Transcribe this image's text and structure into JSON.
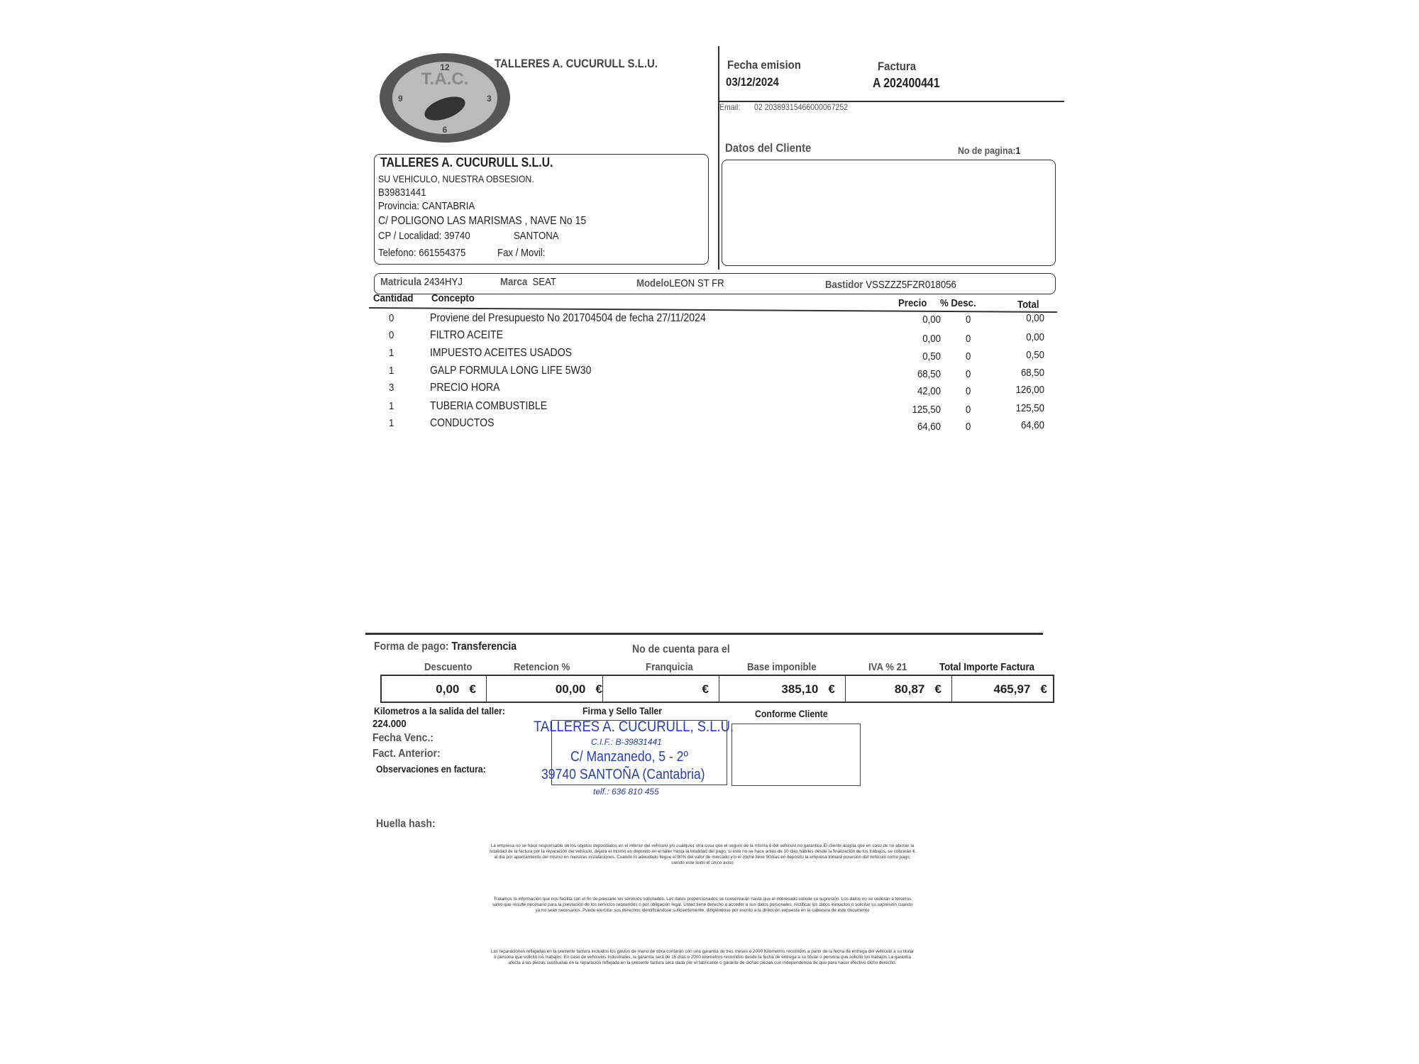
{
  "header": {
    "company": "TALLERES A. CUCURULL S.L.U.",
    "logo_text": "T.A.C.",
    "fecha_label": "Fecha emision",
    "fecha": "03/12/2024",
    "factura_label": "Factura",
    "factura": "A 202400441",
    "email_label": "Email:",
    "email": "02 20389315466000067252"
  },
  "company": {
    "name": "TALLERES A. CUCURULL S.L.U.",
    "slogan": "SU VEHICULO, NUESTRA OBSESION.",
    "cif": "B39831441",
    "provincia": "Provincia:  CANTABRIA",
    "direccion": "C/ POLIGONO LAS MARISMAS , NAVE No 15",
    "cp_label": "CP / Localidad:  39740",
    "localidad": "SANTONA",
    "telefono": "Telefono:  661554375",
    "fax": "Fax / Movil:"
  },
  "cliente": {
    "title": "Datos del Cliente",
    "page_label": "No de pagina:",
    "page": "1"
  },
  "vehiculo": {
    "matricula_label": "Matricula",
    "matricula": "2434HYJ",
    "marca_label": "Marca",
    "marca": "SEAT",
    "modelo_label": "Modelo",
    "modelo": "LEON ST FR",
    "bastidor_label": "Bastidor",
    "bastidor": "VSSZZZ5FZR018056"
  },
  "table": {
    "headers": {
      "cantidad": "Cantidad",
      "concepto": "Concepto",
      "precio": "Precio",
      "desc": "% Desc.",
      "total": "Total"
    },
    "rows": [
      {
        "cantidad": "0",
        "concepto": "Proviene del Presupuesto No  201704504 de fecha 27/11/2024",
        "precio": "0,00",
        "desc": "0",
        "total": "0,00"
      },
      {
        "cantidad": "0",
        "concepto": "FILTRO ACEITE",
        "precio": "0,00",
        "desc": "0",
        "total": "0,00"
      },
      {
        "cantidad": "1",
        "concepto": "IMPUESTO ACEITES USADOS",
        "precio": "0,50",
        "desc": "0",
        "total": "0,50"
      },
      {
        "cantidad": "1",
        "concepto": "GALP FORMULA LONG LIFE 5W30",
        "precio": "68,50",
        "desc": "0",
        "total": "68,50"
      },
      {
        "cantidad": "3",
        "concepto": "PRECIO HORA",
        "precio": "42,00",
        "desc": "0",
        "total": "126,00"
      },
      {
        "cantidad": "1",
        "concepto": "TUBERIA COMBUSTIBLE",
        "precio": "125,50",
        "desc": "0",
        "total": "125,50"
      },
      {
        "cantidad": "1",
        "concepto": "CONDUCTOS",
        "precio": "64,60",
        "desc": "0",
        "total": "64,60"
      }
    ]
  },
  "pago": {
    "forma_label": "Forma de pago:",
    "forma": "Transferencia",
    "cuenta_label": "No de cuenta para el"
  },
  "totales": {
    "descuento_label": "Descuento",
    "descuento": "0,00",
    "retencion_label": "Retencion %",
    "retencion": "00,00",
    "franquicia_label": "Franquicia",
    "base_label": "Base imponible",
    "base": "385,10",
    "iva_label": "IVA %  21",
    "iva": "80,87",
    "total_label": "Total Importe Factura",
    "total": "465,97",
    "currency": "€"
  },
  "footer": {
    "km_label": "Kilometros a la salida del taller:",
    "km": "224.000",
    "fecha_venc": "Fecha Venc.:",
    "fact_anterior": "Fact. Anterior:",
    "observaciones": "Observaciones en factura:",
    "firma_label": "Firma y Sello Taller",
    "conforme_label": "Conforme Cliente",
    "huella": "Huella hash:"
  },
  "stamp": {
    "name": "TALLERES A. CUCURULL, S.L.U.",
    "cif": "C.I.F.: B-39831441",
    "address": "C/ Manzanedo, 5 - 2º",
    "city": "39740 SANTOÑA (Cantabria)",
    "tel": "telf.: 636 810 455"
  },
  "legal": [
    "La empresa no se hace responsable de los objetos depositados en el interior del vehiculo y/o cualquier otra cosa que el seguro de la misma ó del vehiculo no garantice.El cliente acepta que en caso de no abonar la totalidad de la factura por la reparación del vehiculo, dejara el mismo en deposito en el taller hasta la totalidad del pago, si este no se hace  antes de 10 dias hábiles desde la finalización de los trabajos, se cobrarán              € al día por aparcamiento del mismo en nuestras instalaciones.  Cuando lo adeudado llegue el 80% del valor de mercado y/o el coche lleve 90días en depósito la empresa tomará posesión del vehiculo como pago, siendo este texto el único aviso",
    "Tratamos la información que nos facilita con el fin de prestarle los servicios solicitados. Los datos proporcionados se conservarán hasta que el interesado solicite  su supresión. Los datos no se cederán a terceros salvo que resulte necesario para la prestación de los servicios requeridos o por obligación legal. Usted tiene  derecho a acceder a sus datos personales, rectificar los datos inexactos o solicitar su supresión cuando ya no sean necesarios. Puede ejercitar sus derechos  identificándose suficientemente, dirigiéndose por escrito a la dirección expuesta en la cabecera de este documento",
    "Las reparaciones reflejadas en la presente factura incluidos los gastos de mano de obra contarán con una garantía de tres meses o 2000 Kilometros recorridos a partir de la fecha  de entrega del vehículo a su titular o persona que solicitó los trabajos. En caso de vehículos Industriales, la garantía será de 15 días o 2000 kilometros recorridos desde la fecha de entrega a su titular o persona que solicitó los trabajos La garantía afecta a las piezas sustituidas en la reparación reflejada en la presente factura será dada por el fabricante o garante de dichas piezas con independencia de que para hacer efectivo dicho derecho."
  ]
}
